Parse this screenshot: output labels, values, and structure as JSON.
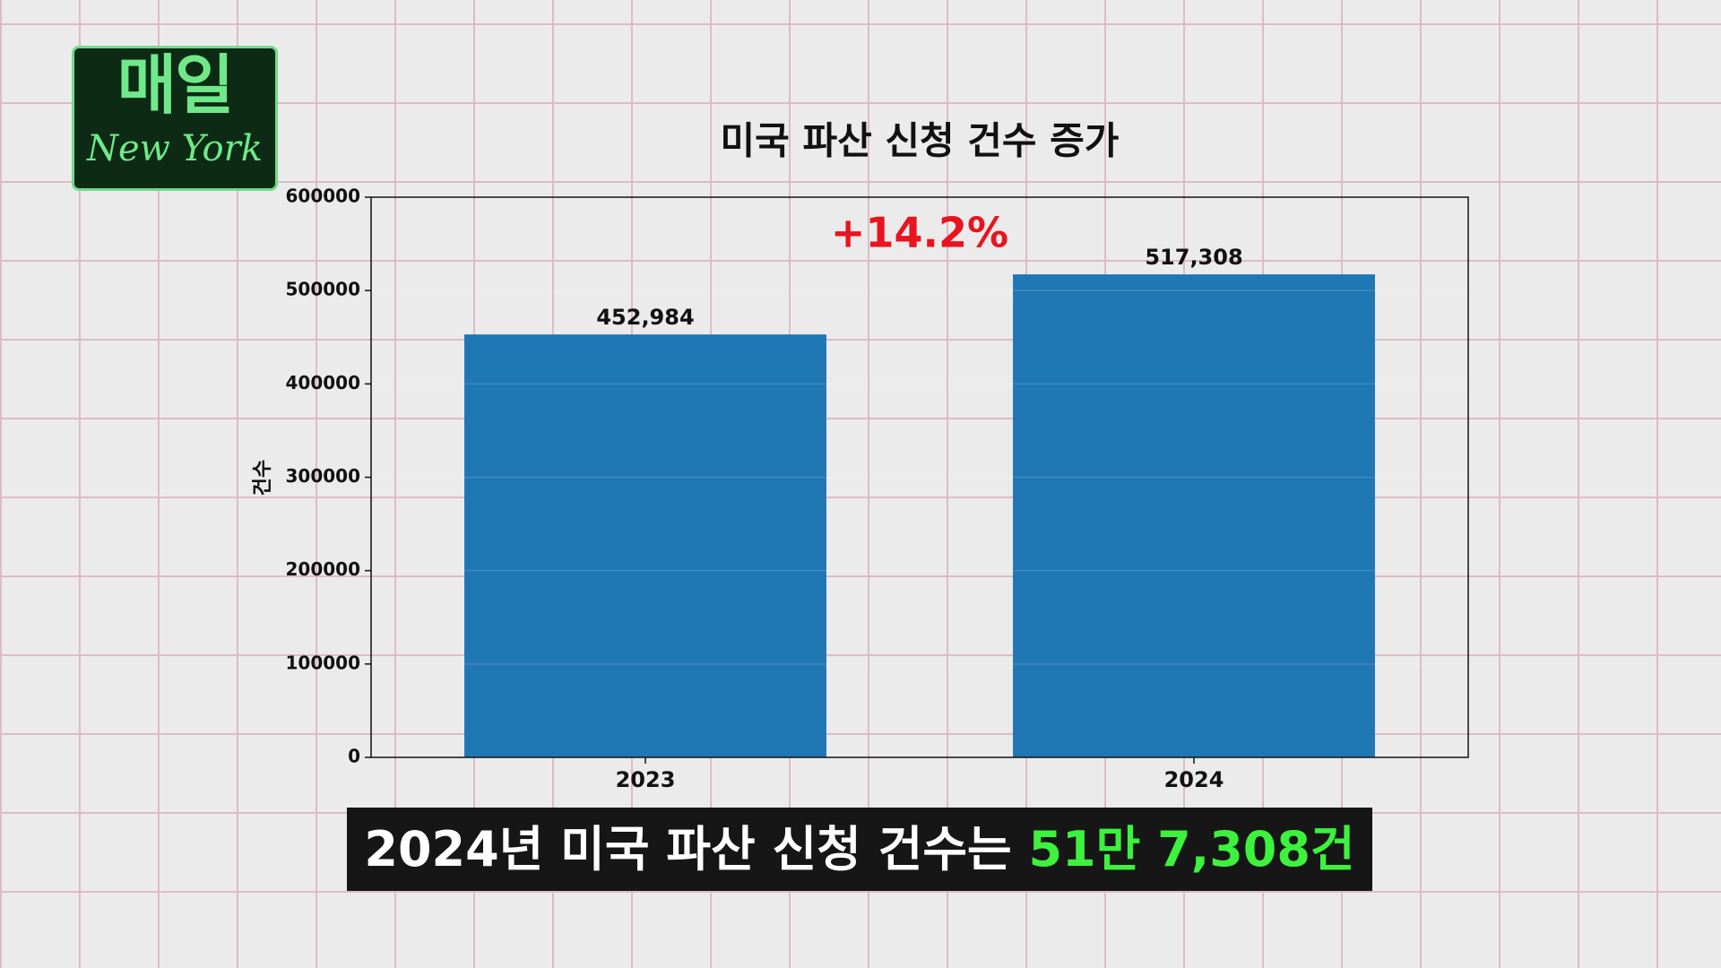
{
  "logo": {
    "main": "매일",
    "sub": "New York"
  },
  "chart_data": {
    "type": "bar",
    "title": "미국 파산 신청 건수 증가",
    "ylabel": "건수",
    "categories": [
      "2023",
      "2024"
    ],
    "values": [
      452984,
      517308
    ],
    "value_labels": [
      "452,984",
      "517,308"
    ],
    "color": "#1f77b4",
    "ylim": [
      0,
      600000
    ],
    "yticks": [
      0,
      100000,
      200000,
      300000,
      400000,
      500000,
      600000
    ],
    "grid": true,
    "annotation": "+14.2%"
  },
  "caption": {
    "text": "2024년 미국 파산 신청 건수는 ",
    "highlight": "51만 7,308건"
  }
}
